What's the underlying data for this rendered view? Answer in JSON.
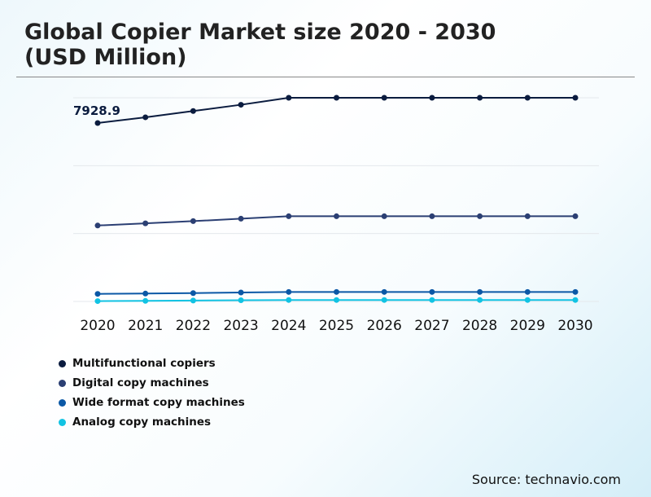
{
  "chart_data": {
    "type": "line",
    "title": "Global Copier Market size 2020 - 2030 (USD Million)",
    "title_lines": [
      "Global Copier Market size 2020 - 2030",
      "(USD Million)"
    ],
    "categories": [
      "2020",
      "2021",
      "2022",
      "2023",
      "2024",
      "2025",
      "2026",
      "2027",
      "2028",
      "2029",
      "2030"
    ],
    "ylim": [
      0,
      9050
    ],
    "grid": true,
    "legend_position": "bottom-left",
    "annotations": [
      {
        "series": "Multifunctional copiers",
        "x": "2020",
        "label": "7928.9"
      }
    ],
    "series": [
      {
        "name": "Multifunctional copiers",
        "color": "#0b1c3f",
        "values": [
          7928.9,
          8183,
          8461,
          8740,
          9050,
          9050,
          9050,
          9050,
          9050,
          9050,
          9050
        ]
      },
      {
        "name": "Digital copy machines",
        "color": "#2b3f73",
        "values": [
          3374,
          3471,
          3569,
          3677,
          3786,
          3786,
          3786,
          3786,
          3786,
          3786,
          3786
        ]
      },
      {
        "name": "Wide format copy machines",
        "color": "#0b58a6",
        "values": [
          337,
          351,
          372,
          398,
          423,
          423,
          423,
          423,
          423,
          423,
          423
        ]
      },
      {
        "name": "Analog copy machines",
        "color": "#12c3e3",
        "values": [
          15,
          25,
          40,
          55,
          65,
          65,
          65,
          65,
          65,
          65,
          65
        ]
      }
    ]
  },
  "source": "Source: technavio.com"
}
